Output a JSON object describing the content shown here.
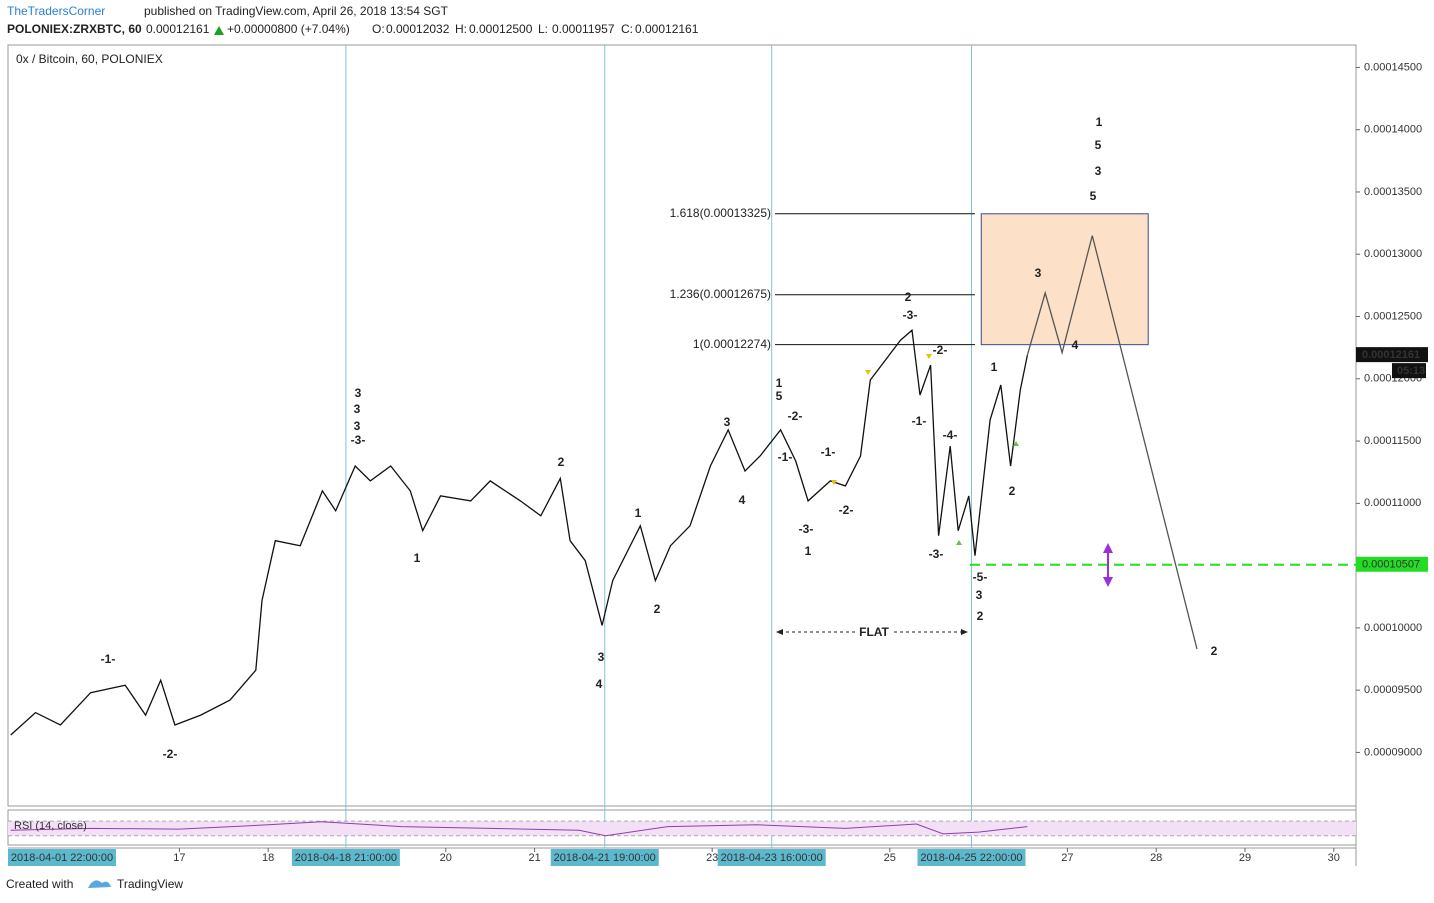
{
  "header": {
    "author": "TheTradersCorner",
    "published": "published on TradingView.com, April 26, 2018 13:54 SGT",
    "symbol": "POLONIEX:ZRXBTC, 60",
    "last": "0.00012161",
    "change": "+0.00000800 (+7.04%)",
    "ohlc": [
      {
        "label": "O:",
        "value": "0.00012032"
      },
      {
        "label": "H:",
        "value": "0.00012500"
      },
      {
        "label": "L:",
        "value": "0.00011957"
      },
      {
        "label": "C:",
        "value": "0.00012161"
      }
    ],
    "countdown": "05:13"
  },
  "footer": {
    "created": "Created with",
    "brand": "TradingView"
  },
  "chart_data": {
    "type": "line",
    "title": "0x / Bitcoin, 60, POLONIEX",
    "xlim": [
      15.07,
      30.25
    ],
    "ylim": [
      8.57e-05,
      0.0001468
    ],
    "yticks": [
      {
        "value": 0.000145,
        "label": "0.00014500"
      },
      {
        "value": 0.00014,
        "label": "0.00014000"
      },
      {
        "value": 0.000135,
        "label": "0.00013500"
      },
      {
        "value": 0.00013,
        "label": "0.00013000"
      },
      {
        "value": 0.000125,
        "label": "0.00012500"
      },
      {
        "value": 0.00012,
        "label": "0.00012000"
      },
      {
        "value": 0.000115,
        "label": "0.00011500"
      },
      {
        "value": 0.00011,
        "label": "0.00011000"
      },
      {
        "value": 0.000105,
        "label": "0.00010500"
      },
      {
        "value": 0.0001,
        "label": "0.00010000"
      },
      {
        "value": 9.5e-05,
        "label": "0.00009500"
      },
      {
        "value": 9e-05,
        "label": "0.00009000"
      }
    ],
    "xticks": [
      17,
      18,
      20,
      21,
      23,
      25,
      27,
      28,
      29,
      30
    ],
    "start_label": "2018-04-01 22:00:00",
    "vlines": [
      {
        "x": 18.875,
        "label": "2018-04-18 21:00:00"
      },
      {
        "x": 21.79,
        "label": "2018-04-21 19:00:00"
      },
      {
        "x": 23.67,
        "label": "2018-04-23 16:00:00"
      },
      {
        "x": 25.92,
        "label": "2018-04-25 22:00:00"
      }
    ],
    "series": [
      {
        "name": "ZRXBTC",
        "color": "#111111",
        "x": [
          15.1,
          15.38,
          15.66,
          16.0,
          16.39,
          16.62,
          16.79,
          16.95,
          17.24,
          17.57,
          17.86,
          17.93,
          18.08,
          18.36,
          18.61,
          18.76,
          18.98,
          19.15,
          19.38,
          19.6,
          19.74,
          19.94,
          20.28,
          20.5,
          20.84,
          21.07,
          21.29,
          21.4,
          21.57,
          21.76,
          21.88,
          22.19,
          22.36,
          22.53,
          22.75,
          22.98,
          23.18,
          23.37,
          23.54,
          23.77,
          23.94,
          24.08,
          24.33,
          24.5,
          24.67,
          24.78,
          24.95,
          25.12,
          25.25,
          25.34,
          25.46,
          25.55,
          25.68,
          25.77,
          25.89,
          25.96,
          26.13,
          26.25,
          26.36,
          26.47,
          26.55
        ],
        "values": [
          9.14e-05,
          9.32e-05,
          9.22e-05,
          9.48e-05,
          9.54e-05,
          9.3e-05,
          9.58e-05,
          9.22e-05,
          9.3e-05,
          9.42e-05,
          9.66e-05,
          0.0001022,
          0.000107,
          0.0001066,
          0.000111,
          0.0001094,
          0.000113,
          0.0001118,
          0.000113,
          0.000111,
          0.0001078,
          0.0001106,
          0.0001102,
          0.0001118,
          0.0001102,
          0.000109,
          0.000112,
          0.000107,
          0.0001054,
          0.0001002,
          0.0001038,
          0.0001082,
          0.0001038,
          0.0001066,
          0.0001082,
          0.000113,
          0.0001159,
          0.0001126,
          0.0001138,
          0.0001159,
          0.0001134,
          0.0001102,
          0.0001118,
          0.0001114,
          0.0001138,
          0.0001199,
          0.0001215,
          0.0001231,
          0.0001239,
          0.0001187,
          0.0001211,
          0.0001074,
          0.0001146,
          0.0001078,
          0.0001106,
          0.0001058,
          0.0001167,
          0.0001195,
          0.000113,
          0.0001191,
          0.0001219
        ]
      }
    ],
    "projection": {
      "color": "#555555",
      "x": [
        26.55,
        26.75,
        26.94,
        27.28,
        28.46
      ],
      "values": [
        0.0001219,
        0.0001269,
        0.0001221,
        0.0001315,
        9.83e-05
      ]
    },
    "fib_levels": [
      {
        "value": 0.00013325,
        "label": "1.618(0.00013325)"
      },
      {
        "value": 0.00012675,
        "label": "1.236(0.00012675)"
      },
      {
        "value": 0.00012274,
        "label": "1(0.00012274)"
      }
    ],
    "target_box": {
      "x": [
        26.03,
        27.91
      ],
      "y": [
        0.00012274,
        0.00013325
      ],
      "color": "#fde0c8"
    },
    "support": {
      "value": 0.00010507,
      "color": "#22dd22"
    },
    "flat_label": "FLAT",
    "waves": [
      {
        "text": "-1-",
        "color": "#e02020"
      },
      {
        "text": "-2-",
        "color": "#e02020"
      },
      {
        "text": "3",
        "color": "#9b30e0"
      },
      {
        "text": "3",
        "color": "#e02020"
      },
      {
        "text": "3",
        "color": "#3d8a22"
      },
      {
        "text": "-3-",
        "color": "#e02020"
      },
      {
        "text": "1",
        "color": "#e02020"
      },
      {
        "text": "2",
        "color": "#e02020"
      },
      {
        "text": "1",
        "color": "#3d8a22"
      },
      {
        "text": "3",
        "color": "#e02020"
      },
      {
        "text": "4",
        "color": "#9b30e0"
      },
      {
        "text": "2",
        "color": "#3d8a22"
      },
      {
        "text": "3",
        "color": "#3d8a22"
      },
      {
        "text": "4",
        "color": "#3d8a22"
      },
      {
        "text": "1",
        "color": "#e02020"
      },
      {
        "text": "5",
        "color": "#3d8a22"
      },
      {
        "text": "-2-",
        "color": "#e02020"
      },
      {
        "text": "-1-",
        "color": "#e02020"
      },
      {
        "text": "-1-",
        "color": "#e02020"
      },
      {
        "text": "-3-",
        "color": "#e02020"
      },
      {
        "text": "-2-",
        "color": "#e02020"
      },
      {
        "text": "1",
        "color": "#3d8a22"
      },
      {
        "text": "2",
        "color": "#3d8a22"
      },
      {
        "text": "-3-",
        "color": "#e02020"
      },
      {
        "text": "-2-",
        "color": "#e02020"
      },
      {
        "text": "-1-",
        "color": "#e02020"
      },
      {
        "text": "-4-",
        "color": "#e02020"
      },
      {
        "text": "-3-",
        "color": "#e02020"
      },
      {
        "text": "-5-",
        "color": "#e02020"
      },
      {
        "text": "3",
        "color": "#3d8a22"
      },
      {
        "text": "2",
        "color": "#e02020"
      },
      {
        "text": "1",
        "color": "#3d8a22"
      },
      {
        "text": "2",
        "color": "#3d8a22"
      },
      {
        "text": "3",
        "color": "#3d8a22"
      },
      {
        "text": "4",
        "color": "#3d8a22"
      },
      {
        "text": "5",
        "color": "#3d8a22"
      },
      {
        "text": "3",
        "color": "#e02020"
      },
      {
        "text": "5",
        "color": "#9b30e0"
      },
      {
        "text": "1",
        "color": "#4a7fd6"
      },
      {
        "text": "2",
        "color": "#9b30e0"
      }
    ],
    "rsi": {
      "name": "RSI (14, close)",
      "color": "#8e3fa8",
      "ylim": [
        10,
        95
      ],
      "bands": [
        30,
        70
      ],
      "x": [
        15.1,
        16,
        17,
        18,
        18.6,
        19.5,
        20.5,
        21.5,
        21.8,
        22.5,
        23.5,
        24.5,
        25.3,
        25.6,
        26,
        26.55
      ],
      "values": [
        45,
        50,
        48,
        60,
        68,
        55,
        50,
        45,
        30,
        55,
        60,
        50,
        62,
        35,
        40,
        55
      ]
    }
  }
}
